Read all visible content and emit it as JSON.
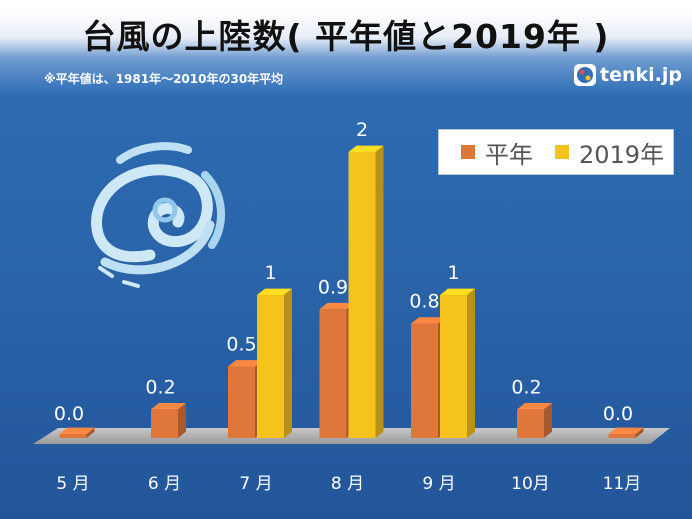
{
  "title": "台風の上陸数( 平年値と2019年 )",
  "note": "※平年値は、1981年～2010年の30年平均",
  "logo": "tenki.jp",
  "colors": {
    "normal": "#e0773a",
    "y2019": "#f6c21c"
  },
  "chart_data": {
    "type": "bar",
    "categories": [
      "5 月",
      "6 月",
      "7 月",
      "8 月",
      "9 月",
      "10月",
      "11月"
    ],
    "series": [
      {
        "name": "平年",
        "values": [
          0.0,
          0.2,
          0.5,
          0.9,
          0.8,
          0.2,
          0.0
        ]
      },
      {
        "name": "2019年",
        "values": [
          null,
          null,
          1,
          2,
          1,
          null,
          null
        ]
      }
    ],
    "value_labels": [
      [
        "0.0",
        "0.2",
        "0.5",
        "0.9",
        "0.8",
        "0.2",
        "0.0"
      ],
      [
        "",
        "",
        "1",
        "2",
        "1",
        "",
        ""
      ]
    ],
    "ylim": [
      0,
      2
    ],
    "legend_position": "top-right",
    "grid": false
  }
}
